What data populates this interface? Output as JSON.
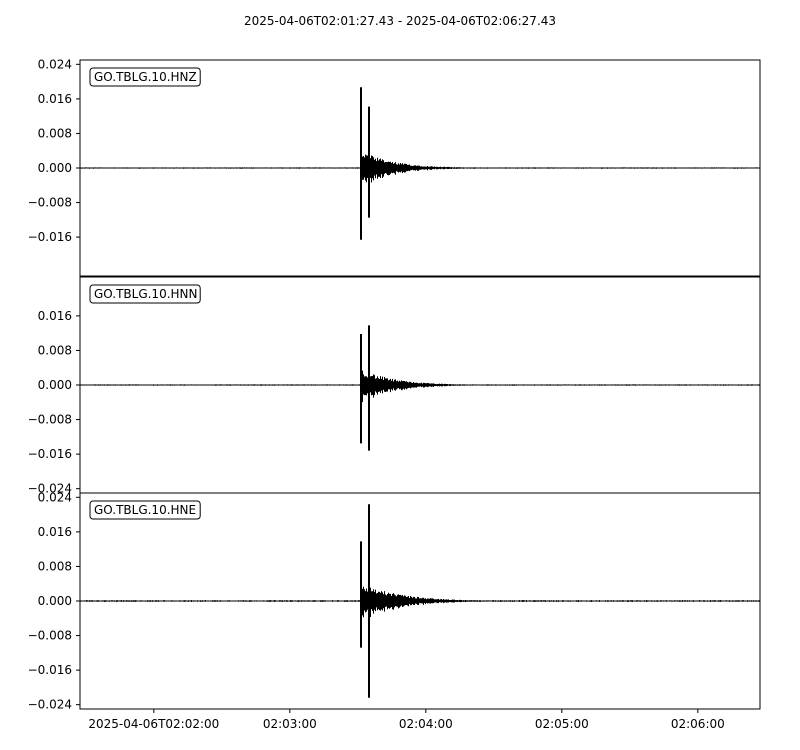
{
  "chart_data": {
    "type": "line",
    "title": "2025-04-06T02:01:27.43  -  2025-04-06T02:06:27.43",
    "x_tick_labels": [
      "2025-04-06T02:02:00",
      "02:03:00",
      "02:04:00",
      "02:05:00",
      "02:06:00"
    ],
    "x_ticks_seconds_from_start": [
      32.57,
      92.57,
      152.57,
      212.57,
      272.57
    ],
    "xlim_seconds": [
      0,
      300
    ],
    "ylim": [
      -0.025,
      0.025
    ],
    "grid": false,
    "panels": [
      {
        "trace": "GO.TBLG.10.HNZ",
        "yticks": [
          "0.024",
          "0.016",
          "0.008",
          "0.000",
          "−0.008",
          "−0.016"
        ],
        "ytick_values": [
          0.024,
          0.016,
          0.008,
          0.0,
          -0.008,
          -0.016
        ],
        "background_noise": 0.00012,
        "first_arrival_s": 124.0,
        "peaks": [
          {
            "t": 124.1,
            "max": 0.0187,
            "min": -0.0166
          },
          {
            "t": 127.5,
            "max": 0.0142,
            "min": -0.0115
          }
        ],
        "coda_amplitude": 0.004,
        "coda_decay_s": 14
      },
      {
        "trace": "GO.TBLG.10.HNN",
        "yticks": [
          "0.016",
          "0.008",
          "0.000",
          "−0.008",
          "−0.016",
          "−0.024"
        ],
        "ytick_values": [
          0.016,
          0.008,
          0.0,
          -0.008,
          -0.016,
          -0.024
        ],
        "background_noise": 0.00012,
        "first_arrival_s": 124.0,
        "peaks": [
          {
            "t": 124.1,
            "max": 0.0118,
            "min": -0.0135
          },
          {
            "t": 127.5,
            "max": 0.0138,
            "min": -0.0152
          }
        ],
        "coda_amplitude": 0.0038,
        "coda_decay_s": 14
      },
      {
        "trace": "GO.TBLG.10.HNE",
        "yticks": [
          "0.024",
          "0.016",
          "0.008",
          "0.000",
          "−0.008",
          "−0.016",
          "−0.024"
        ],
        "ytick_values": [
          0.024,
          0.016,
          0.008,
          0.0,
          -0.008,
          -0.016,
          -0.024
        ],
        "background_noise": 0.00015,
        "first_arrival_s": 124.0,
        "peaks": [
          {
            "t": 124.1,
            "max": 0.0138,
            "min": -0.0108
          },
          {
            "t": 127.5,
            "max": 0.0224,
            "min": -0.0224
          }
        ],
        "coda_amplitude": 0.0045,
        "coda_decay_s": 16
      }
    ]
  }
}
